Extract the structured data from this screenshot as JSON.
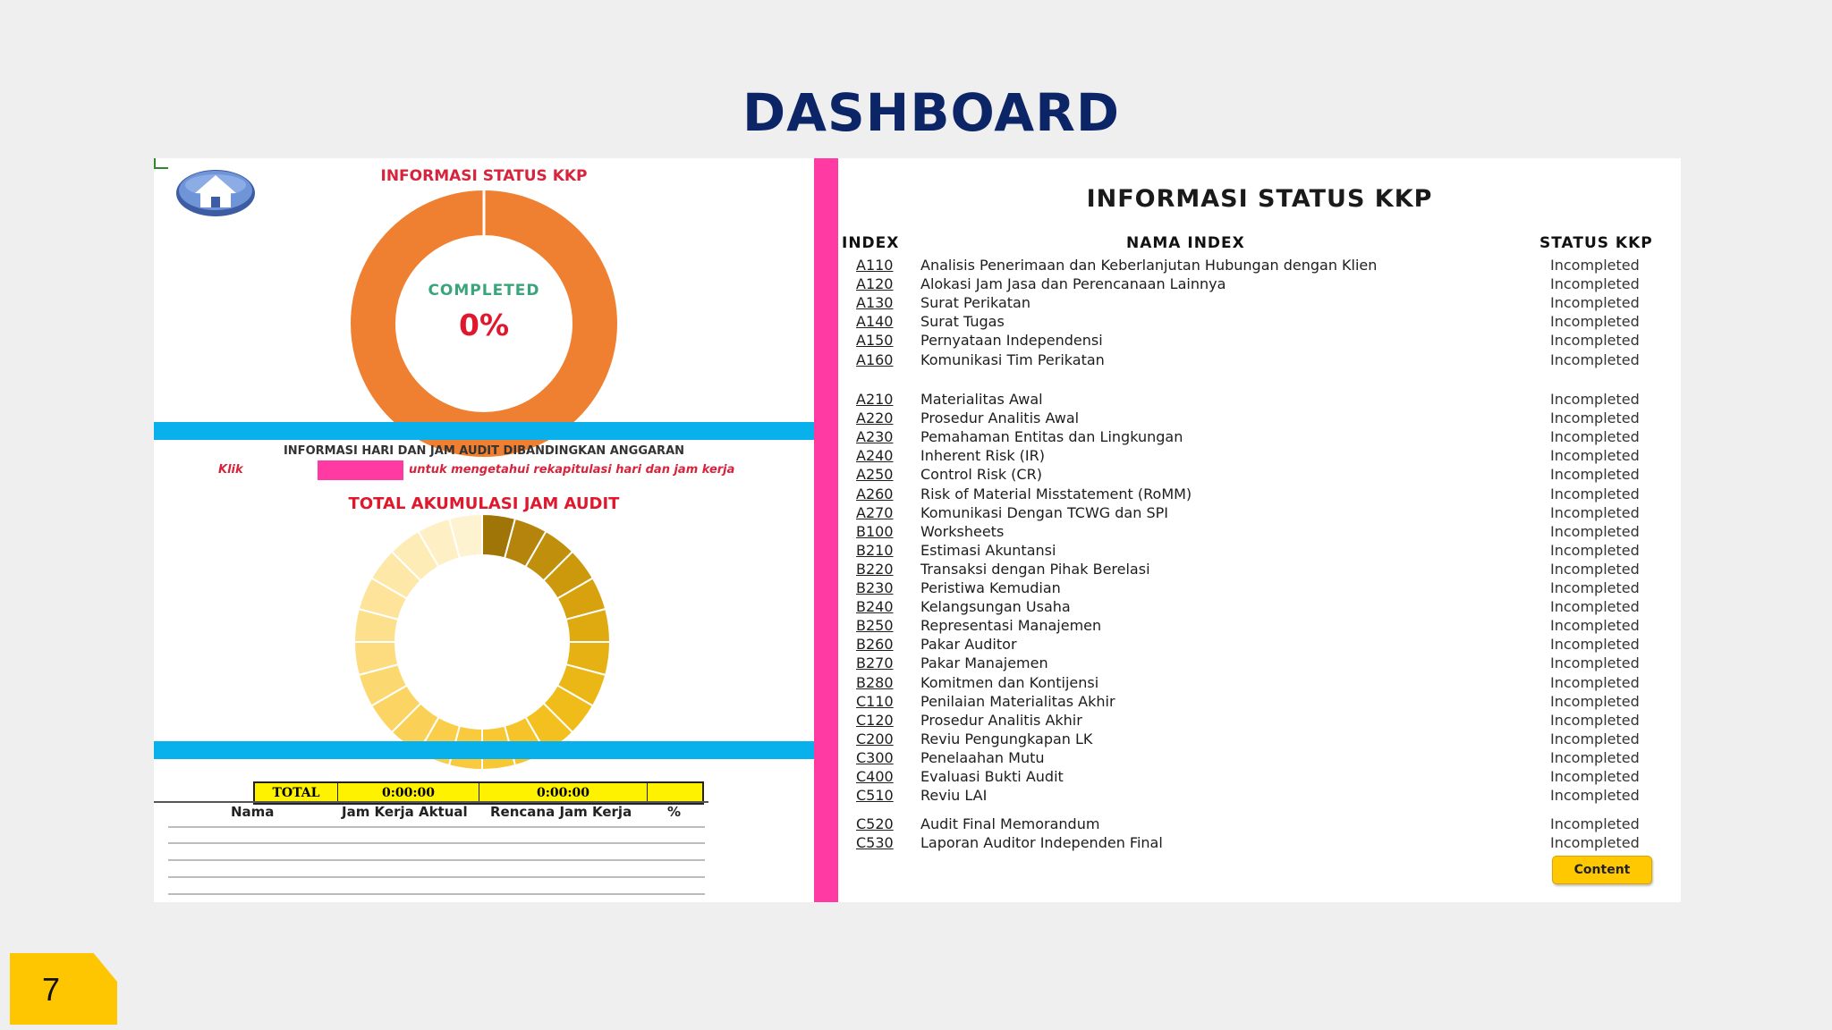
{
  "title": "DASHBOARD",
  "left_panel": {
    "status_title": "INFORMASI STATUS KKP",
    "completed_label": "COMPLETED",
    "completed_value": "0%",
    "info_line": "INFORMASI HARI DAN JAM AUDIT DIBANDINGKAN ANGGARAN",
    "klik_prefix": "Klik",
    "klik_suffix": "untuk mengetahui rekapitulasi hari dan jam kerja",
    "total_title": "TOTAL AKUMULASI JAM AUDIT",
    "total_label": "TOTAL",
    "total_actual": "0:00:00",
    "total_plan": "0:00:00",
    "columns": [
      "Nama",
      "Jam Kerja Aktual",
      "Rencana Jam Kerja",
      "%"
    ]
  },
  "right_panel": {
    "title": "INFORMASI STATUS KKP",
    "headers": {
      "index": "INDEX",
      "name": "NAMA INDEX",
      "status": "STATUS KKP"
    },
    "rows": [
      {
        "index": "A110",
        "name": "Analisis Penerimaan dan Keberlanjutan Hubungan dengan Klien",
        "status": "Incompleted"
      },
      {
        "index": "A120",
        "name": "Alokasi Jam Jasa dan Perencanaan Lainnya",
        "status": "Incompleted"
      },
      {
        "index": "A130",
        "name": "Surat Perikatan",
        "status": "Incompleted"
      },
      {
        "index": "A140",
        "name": "Surat Tugas",
        "status": "Incompleted"
      },
      {
        "index": "A150",
        "name": "Pernyataan Independensi",
        "status": "Incompleted"
      },
      {
        "index": "A160",
        "name": "Komunikasi Tim Perikatan",
        "status": "Incompleted"
      },
      {
        "index": "A210",
        "name": "Materialitas Awal",
        "status": "Incompleted"
      },
      {
        "index": "A220",
        "name": "Prosedur Analitis Awal",
        "status": "Incompleted"
      },
      {
        "index": "A230",
        "name": "Pemahaman Entitas dan Lingkungan",
        "status": "Incompleted"
      },
      {
        "index": "A240",
        "name": "Inherent Risk (IR)",
        "status": "Incompleted"
      },
      {
        "index": "A250",
        "name": "Control Risk (CR)",
        "status": "Incompleted"
      },
      {
        "index": "A260",
        "name": "Risk of Material Misstatement (RoMM)",
        "status": "Incompleted"
      },
      {
        "index": "A270",
        "name": "Komunikasi Dengan TCWG dan SPI",
        "status": "Incompleted"
      },
      {
        "index": "B100",
        "name": "Worksheets",
        "status": "Incompleted"
      },
      {
        "index": "B210",
        "name": "Estimasi Akuntansi",
        "status": "Incompleted"
      },
      {
        "index": "B220",
        "name": "Transaksi dengan Pihak Berelasi",
        "status": "Incompleted"
      },
      {
        "index": "B230",
        "name": "Peristiwa Kemudian",
        "status": "Incompleted"
      },
      {
        "index": "B240",
        "name": "Kelangsungan Usaha",
        "status": "Incompleted"
      },
      {
        "index": "B250",
        "name": "Representasi Manajemen",
        "status": "Incompleted"
      },
      {
        "index": "B260",
        "name": "Pakar Auditor",
        "status": "Incompleted"
      },
      {
        "index": "B270",
        "name": "Pakar Manajemen",
        "status": "Incompleted"
      },
      {
        "index": "B280",
        "name": "Komitmen dan Kontijensi",
        "status": "Incompleted"
      },
      {
        "index": "C110",
        "name": "Penilaian Materialitas Akhir",
        "status": "Incompleted"
      },
      {
        "index": "C120",
        "name": "Prosedur Analitis Akhir",
        "status": "Incompleted"
      },
      {
        "index": "C200",
        "name": "Reviu Pengungkapan LK",
        "status": "Incompleted"
      },
      {
        "index": "C300",
        "name": "Penelaahan Mutu",
        "status": "Incompleted"
      },
      {
        "index": "C400",
        "name": "Evaluasi Bukti Audit",
        "status": "Incompleted"
      },
      {
        "index": "C510",
        "name": "Reviu LAI",
        "status": "Incompleted"
      },
      {
        "index": "C520",
        "name": "Audit Final Memorandum",
        "status": "Incompleted"
      },
      {
        "index": "C530",
        "name": "Laporan Auditor Independen Final",
        "status": "Incompleted"
      }
    ],
    "content_button": "Content"
  },
  "page_number": "7",
  "colors": {
    "title": "#0c2567",
    "donut_status": "#ef7f31",
    "completed_label": "#3aa57a",
    "completed_value": "#e0182e",
    "accent_blue": "#08b1ec",
    "accent_pink": "#ff3aa3",
    "total_fill": "#fff200",
    "page_tag": "#fdc600"
  },
  "icons": {
    "home": "home-icon"
  }
}
